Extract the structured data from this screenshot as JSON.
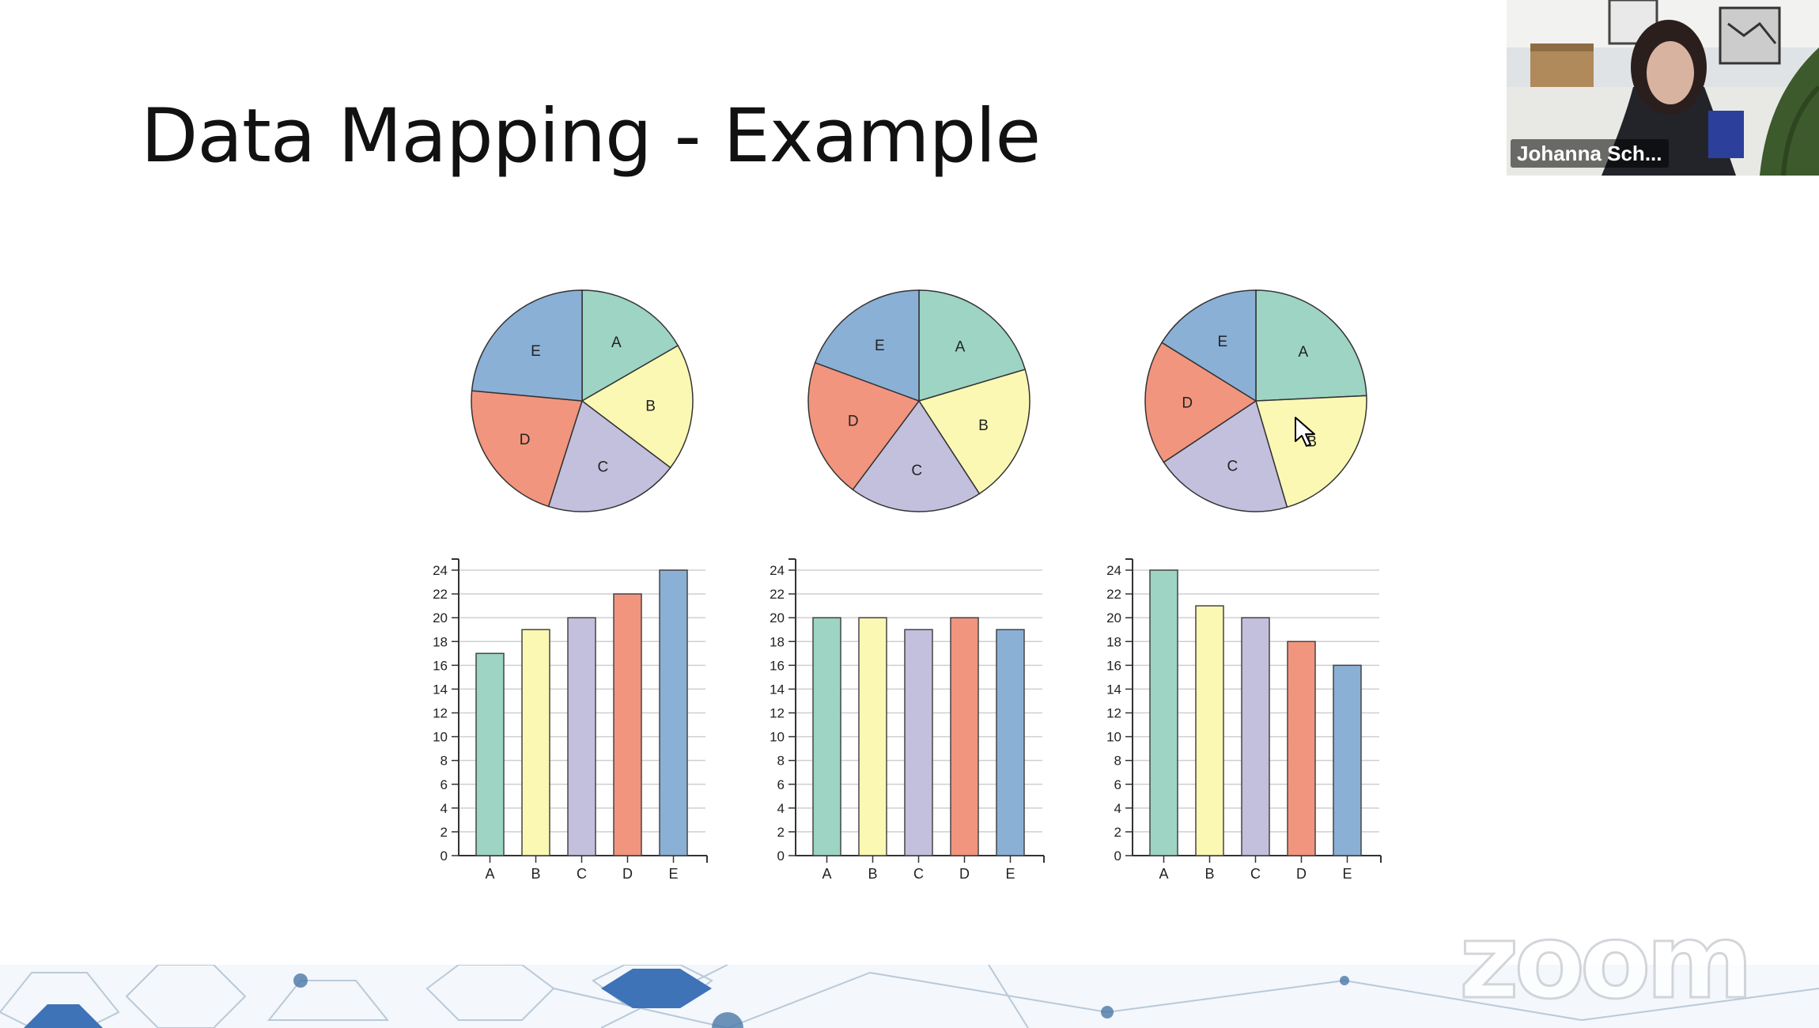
{
  "slide": {
    "title": "Data Mapping - Example"
  },
  "video": {
    "participant_name": "Johanna Sch..."
  },
  "watermark": {
    "text": "zoom"
  },
  "colors": {
    "A": "#9dd4c4",
    "B": "#fbf8b4",
    "C": "#c3c0de",
    "D": "#f2957e",
    "E": "#8ab0d6"
  },
  "chart_data": [
    {
      "type": "pie",
      "categories": [
        "A",
        "B",
        "C",
        "D",
        "E"
      ],
      "values": [
        17,
        19,
        20,
        22,
        24
      ]
    },
    {
      "type": "pie",
      "categories": [
        "A",
        "B",
        "C",
        "D",
        "E"
      ],
      "values": [
        20,
        20,
        19,
        20,
        19
      ]
    },
    {
      "type": "pie",
      "categories": [
        "A",
        "B",
        "C",
        "D",
        "E"
      ],
      "values": [
        24,
        21,
        20,
        18,
        16
      ]
    },
    {
      "type": "bar",
      "categories": [
        "A",
        "B",
        "C",
        "D",
        "E"
      ],
      "values": [
        17,
        19,
        20,
        22,
        24
      ],
      "ylim": [
        0,
        24
      ],
      "yticks": [
        "0",
        "2",
        "4",
        "6",
        "8",
        "10",
        "12",
        "14",
        "16",
        "18",
        "20",
        "22",
        "24"
      ],
      "grid": true
    },
    {
      "type": "bar",
      "categories": [
        "A",
        "B",
        "C",
        "D",
        "E"
      ],
      "values": [
        20,
        20,
        19,
        20,
        19
      ],
      "ylim": [
        0,
        24
      ],
      "yticks": [
        "0",
        "2",
        "4",
        "6",
        "8",
        "10",
        "12",
        "14",
        "16",
        "18",
        "20",
        "22",
        "24"
      ],
      "grid": true
    },
    {
      "type": "bar",
      "categories": [
        "A",
        "B",
        "C",
        "D",
        "E"
      ],
      "values": [
        24,
        21,
        20,
        18,
        16
      ],
      "ylim": [
        0,
        24
      ],
      "yticks": [
        "0",
        "2",
        "4",
        "6",
        "8",
        "10",
        "12",
        "14",
        "16",
        "18",
        "20",
        "22",
        "24"
      ],
      "grid": true
    }
  ]
}
